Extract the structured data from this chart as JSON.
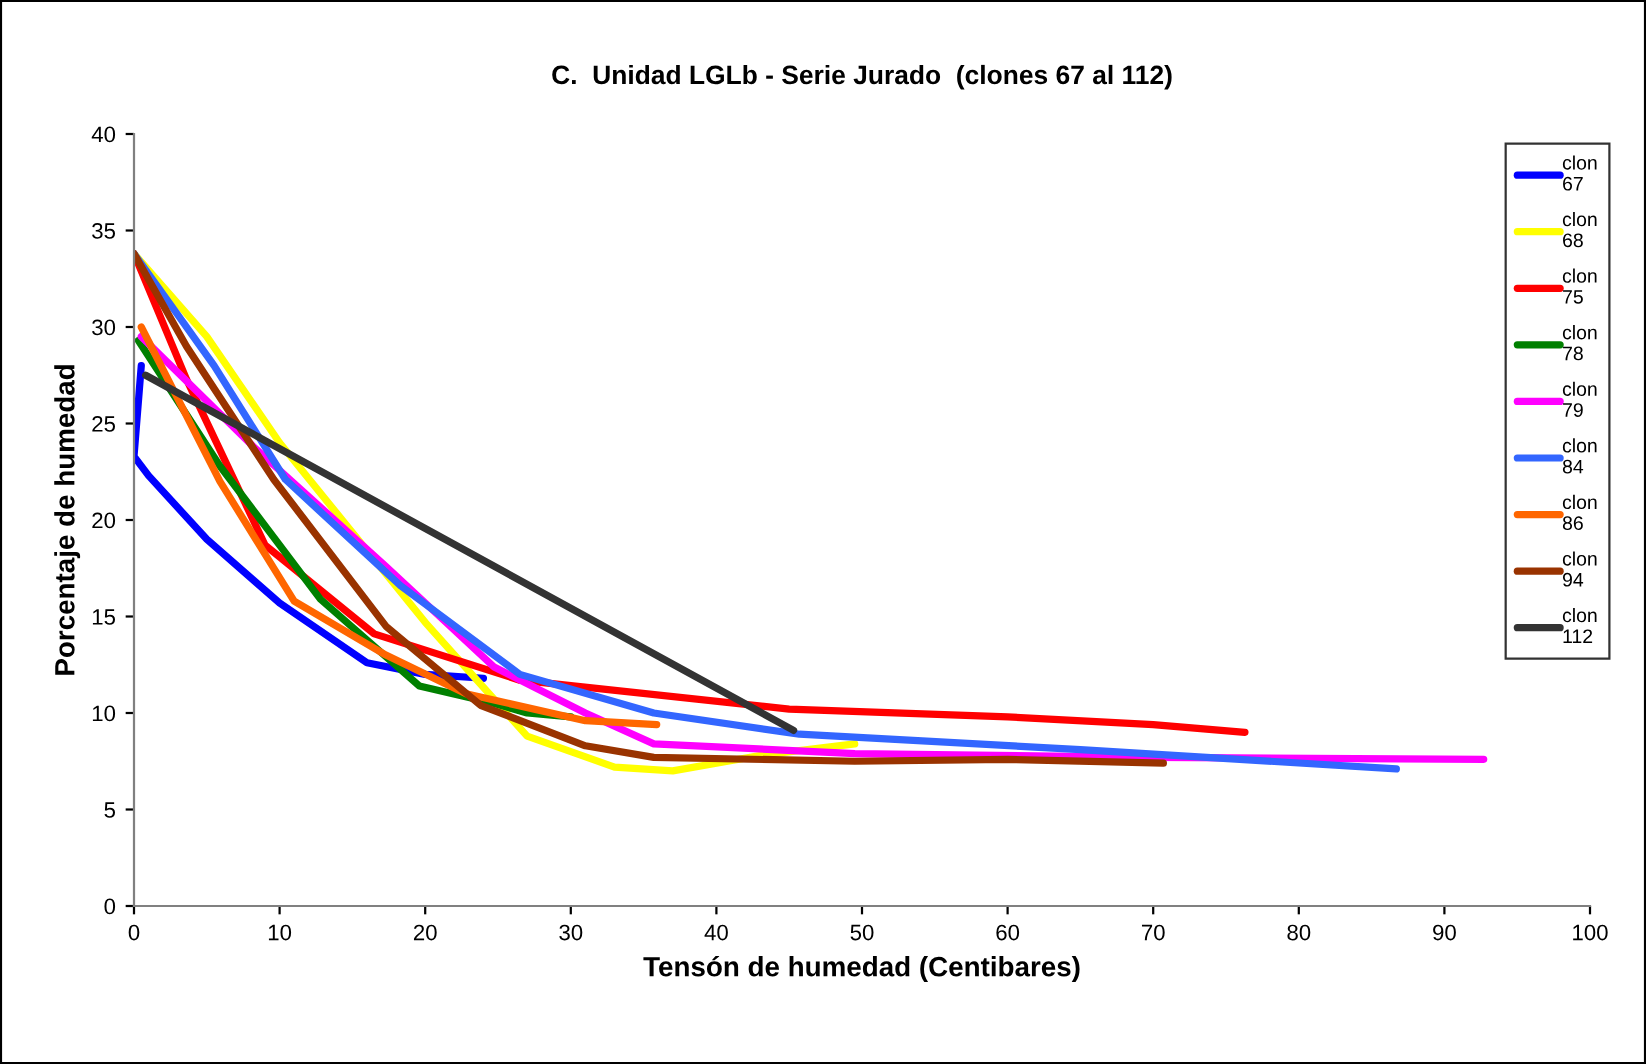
{
  "chart_data": {
    "type": "line",
    "title": "C.  Unidad LGLb - Serie Jurado  (clones 67 al 112)",
    "xlabel": "Tensón de humedad (Centibares)",
    "ylabel": "Porcentaje de humedad",
    "xlim": [
      0,
      100
    ],
    "xticks": [
      0,
      10,
      20,
      30,
      40,
      50,
      60,
      70,
      80,
      90,
      100
    ],
    "ylim": [
      0,
      40
    ],
    "yticks": [
      0,
      5,
      10,
      15,
      20,
      25,
      30,
      35,
      40
    ],
    "grid": false,
    "legend": "right",
    "marker": "none",
    "line_style": "solid",
    "series": [
      {
        "name": "clon 67",
        "color": "#0000ff",
        "x": [
          0.5,
          0,
          1,
          5,
          10,
          16,
          20,
          24
        ],
        "values": [
          28,
          23.3,
          22.3,
          19,
          15.7,
          12.6,
          12,
          11.8
        ]
      },
      {
        "name": "clon 68",
        "color": "#ffff00",
        "x": [
          0,
          5,
          10,
          20,
          27,
          33,
          37,
          43,
          49.5
        ],
        "values": [
          33.8,
          29.5,
          24,
          14.7,
          8.8,
          7.2,
          7,
          7.8,
          8.4
        ]
      },
      {
        "name": "clon 75",
        "color": "#ff0000",
        "x": [
          0,
          3.6,
          9,
          16.5,
          26.5,
          45,
          60,
          70,
          76.3
        ],
        "values": [
          33.8,
          27.3,
          18.7,
          14.1,
          11.7,
          10.2,
          9.8,
          9.4,
          9
        ]
      },
      {
        "name": "clon 78",
        "color": "#008000",
        "x": [
          0.3,
          5.9,
          12.8,
          19.6,
          24.7,
          27,
          30
        ],
        "values": [
          29.3,
          22.8,
          15.9,
          11.4,
          10.5,
          10,
          9.8
        ]
      },
      {
        "name": "clon 79",
        "color": "#ff00ff",
        "x": [
          0.5,
          8.2,
          17.3,
          24.7,
          31,
          35.7,
          49.5,
          70,
          92.7
        ],
        "values": [
          29.5,
          23.8,
          17.6,
          12.4,
          10,
          8.4,
          7.9,
          7.7,
          7.6
        ]
      },
      {
        "name": "clon 84",
        "color": "#3366ff",
        "x": [
          0,
          5.5,
          10.4,
          18.3,
          26.5,
          35.7,
          45.7,
          65,
          86.7
        ],
        "values": [
          33.8,
          28,
          22.1,
          16.6,
          12,
          10,
          8.9,
          8.1,
          7.1
        ]
      },
      {
        "name": "clon 86",
        "color": "#ff6600",
        "x": [
          0.5,
          5.9,
          11,
          17.3,
          22.8,
          31,
          35.9
        ],
        "values": [
          30,
          22,
          15.8,
          13,
          11,
          9.6,
          9.4
        ]
      },
      {
        "name": "clon 94",
        "color": "#993300",
        "x": [
          0,
          3.6,
          9.6,
          17.3,
          23.8,
          31,
          35.7,
          49.5,
          60,
          70.7
        ],
        "values": [
          33.8,
          29,
          22.1,
          14.5,
          10.4,
          8.3,
          7.7,
          7.5,
          7.6,
          7.4
        ]
      },
      {
        "name": "clon 112",
        "color": "#333333",
        "x": [
          0.8,
          45.3
        ],
        "values": [
          27.5,
          9.1
        ]
      }
    ]
  }
}
